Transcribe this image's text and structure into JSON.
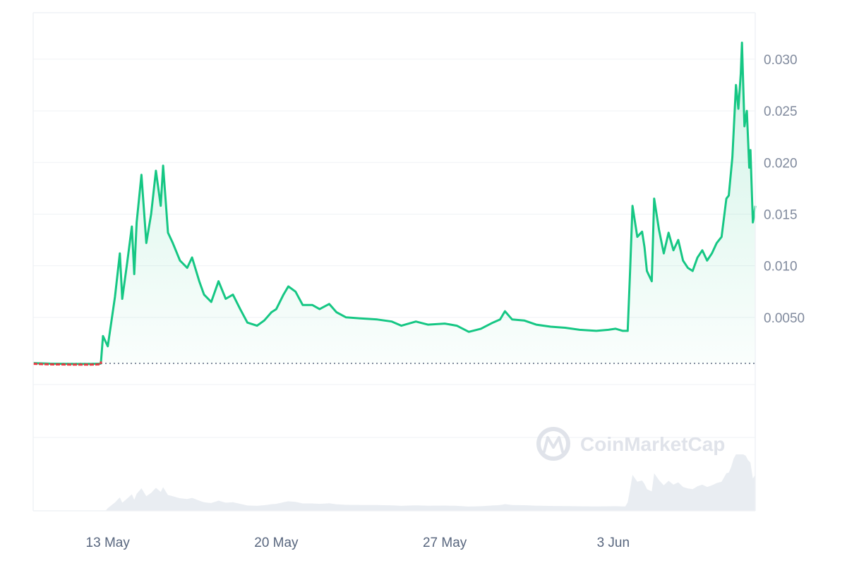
{
  "chart_data": {
    "type": "area",
    "y_ticks": [
      "0.030",
      "0.025",
      "0.020",
      "0.015",
      "0.010",
      "0.0050"
    ],
    "y_tick_values": [
      0.03,
      0.025,
      0.02,
      0.015,
      0.01,
      0.005
    ],
    "x_ticks": [
      "13 May",
      "20 May",
      "27 May",
      "3 Jun"
    ],
    "x_tick_values": [
      13,
      20,
      27,
      34
    ],
    "xlim": [
      9.9,
      39.9
    ],
    "ylim": [
      -0.0015,
      0.0345
    ],
    "baseline_value": 0.00055,
    "grid": "horizontal",
    "colors": {
      "up": "#16c784",
      "down": "#ea3943",
      "volume": "#e9edf2"
    },
    "watermark": {
      "text": "CoinMarketCap",
      "icon": "coinmarketcap-logo-icon"
    },
    "price": [
      [
        9.9,
        0.00058
      ],
      [
        10.6,
        0.00052
      ],
      [
        11.5,
        0.0005
      ],
      [
        12.3,
        0.0005
      ],
      [
        12.7,
        0.00052
      ],
      [
        12.72,
        0.0008
      ],
      [
        12.8,
        0.0032
      ],
      [
        13.0,
        0.0022
      ],
      [
        13.3,
        0.007
      ],
      [
        13.5,
        0.0112
      ],
      [
        13.6,
        0.0068
      ],
      [
        13.8,
        0.0102
      ],
      [
        14.0,
        0.0138
      ],
      [
        14.1,
        0.0092
      ],
      [
        14.2,
        0.0142
      ],
      [
        14.4,
        0.0188
      ],
      [
        14.6,
        0.0122
      ],
      [
        14.8,
        0.015
      ],
      [
        15.0,
        0.0192
      ],
      [
        15.2,
        0.0158
      ],
      [
        15.3,
        0.0197
      ],
      [
        15.5,
        0.0132
      ],
      [
        15.7,
        0.0122
      ],
      [
        16.0,
        0.0105
      ],
      [
        16.3,
        0.0098
      ],
      [
        16.5,
        0.0108
      ],
      [
        16.8,
        0.0085
      ],
      [
        17.0,
        0.0072
      ],
      [
        17.3,
        0.0065
      ],
      [
        17.6,
        0.0085
      ],
      [
        17.9,
        0.0068
      ],
      [
        18.2,
        0.0072
      ],
      [
        18.5,
        0.0058
      ],
      [
        18.8,
        0.0045
      ],
      [
        19.2,
        0.0042
      ],
      [
        19.5,
        0.0047
      ],
      [
        19.8,
        0.0055
      ],
      [
        20.0,
        0.0058
      ],
      [
        20.3,
        0.0072
      ],
      [
        20.5,
        0.008
      ],
      [
        20.8,
        0.0075
      ],
      [
        21.1,
        0.0062
      ],
      [
        21.5,
        0.0062
      ],
      [
        21.8,
        0.0058
      ],
      [
        22.2,
        0.0063
      ],
      [
        22.5,
        0.0055
      ],
      [
        22.9,
        0.005
      ],
      [
        23.5,
        0.0049
      ],
      [
        24.2,
        0.0048
      ],
      [
        24.8,
        0.0046
      ],
      [
        25.2,
        0.0042
      ],
      [
        25.8,
        0.0046
      ],
      [
        26.3,
        0.0043
      ],
      [
        27.0,
        0.0044
      ],
      [
        27.5,
        0.0042
      ],
      [
        28.0,
        0.0036
      ],
      [
        28.5,
        0.0039
      ],
      [
        29.0,
        0.0045
      ],
      [
        29.3,
        0.0048
      ],
      [
        29.5,
        0.0056
      ],
      [
        29.8,
        0.0048
      ],
      [
        30.3,
        0.0047
      ],
      [
        30.8,
        0.0043
      ],
      [
        31.4,
        0.0041
      ],
      [
        32.0,
        0.004
      ],
      [
        32.6,
        0.0038
      ],
      [
        33.3,
        0.0037
      ],
      [
        33.8,
        0.0038
      ],
      [
        34.1,
        0.0039
      ],
      [
        34.4,
        0.0037
      ],
      [
        34.6,
        0.0037
      ],
      [
        34.7,
        0.0095
      ],
      [
        34.8,
        0.0158
      ],
      [
        35.0,
        0.0128
      ],
      [
        35.2,
        0.0133
      ],
      [
        35.3,
        0.0118
      ],
      [
        35.4,
        0.0095
      ],
      [
        35.6,
        0.0085
      ],
      [
        35.7,
        0.0165
      ],
      [
        35.9,
        0.0135
      ],
      [
        36.1,
        0.0112
      ],
      [
        36.3,
        0.0132
      ],
      [
        36.5,
        0.0115
      ],
      [
        36.7,
        0.0125
      ],
      [
        36.9,
        0.0105
      ],
      [
        37.1,
        0.0098
      ],
      [
        37.3,
        0.0095
      ],
      [
        37.5,
        0.0108
      ],
      [
        37.7,
        0.0115
      ],
      [
        37.9,
        0.0105
      ],
      [
        38.1,
        0.0112
      ],
      [
        38.3,
        0.0122
      ],
      [
        38.5,
        0.0128
      ],
      [
        38.7,
        0.0165
      ],
      [
        38.8,
        0.0168
      ],
      [
        38.95,
        0.0205
      ],
      [
        39.1,
        0.0275
      ],
      [
        39.2,
        0.0252
      ],
      [
        39.3,
        0.0286
      ],
      [
        39.35,
        0.0316
      ],
      [
        39.45,
        0.0235
      ],
      [
        39.55,
        0.025
      ],
      [
        39.65,
        0.0195
      ],
      [
        39.7,
        0.0212
      ],
      [
        39.8,
        0.0142
      ],
      [
        39.85,
        0.0148
      ],
      [
        39.9,
        0.0158
      ]
    ]
  }
}
